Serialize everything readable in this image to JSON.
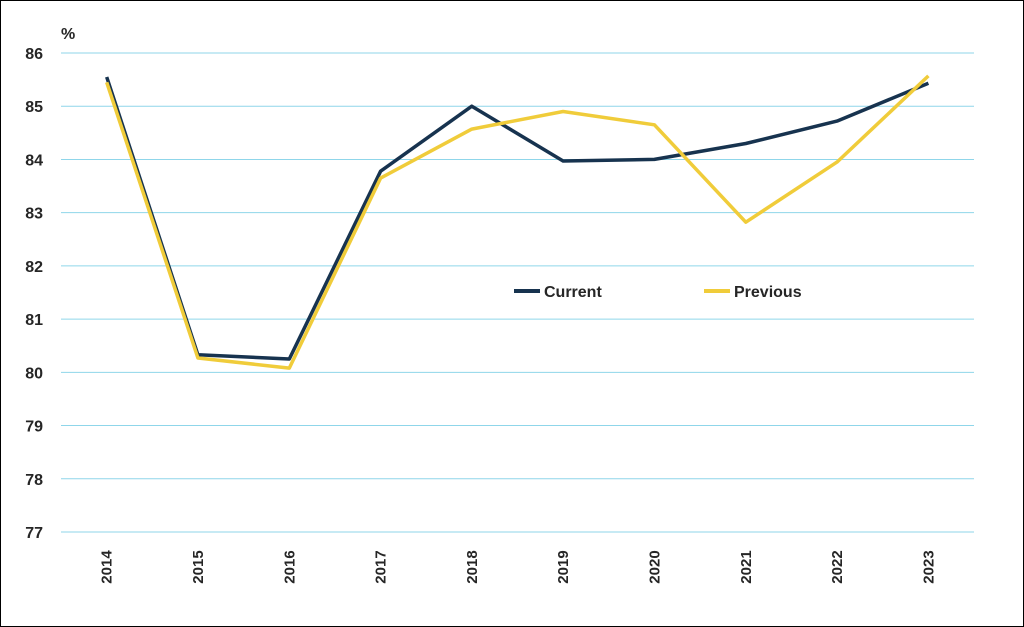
{
  "chart_data": {
    "type": "line",
    "unit_label": "%",
    "categories": [
      "2014",
      "2015",
      "2016",
      "2017",
      "2018",
      "2019",
      "2020",
      "2021",
      "2022",
      "2023"
    ],
    "y_ticks": [
      "77",
      "78",
      "79",
      "80",
      "81",
      "82",
      "83",
      "84",
      "85",
      "86"
    ],
    "ylim": [
      77,
      86
    ],
    "grid": true,
    "legend_position": "center",
    "series": [
      {
        "name": "Current",
        "color": "#17334f",
        "values": [
          85.55,
          80.33,
          80.25,
          83.78,
          85.0,
          83.97,
          84.0,
          84.3,
          84.72,
          85.43
        ]
      },
      {
        "name": "Previous",
        "color": "#f0cc3a",
        "values": [
          85.45,
          80.27,
          80.08,
          83.65,
          84.57,
          84.9,
          84.65,
          82.82,
          83.95,
          85.57
        ]
      }
    ],
    "gridline_color": "#8fd6ea"
  }
}
